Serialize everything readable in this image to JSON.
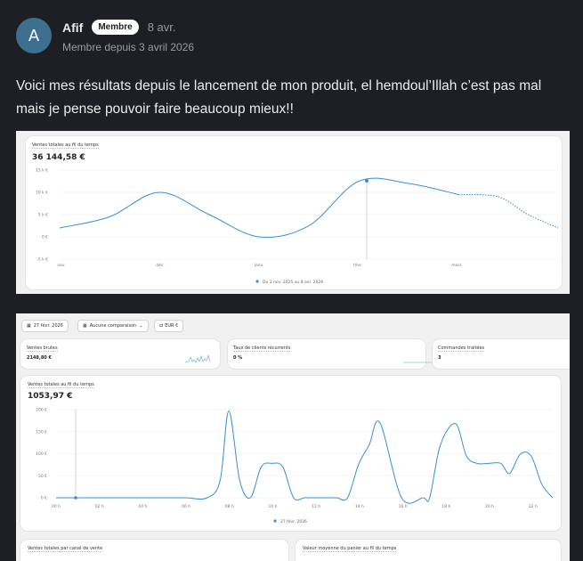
{
  "post": {
    "avatar_initial": "A",
    "author": "Afif",
    "badge": "Membre",
    "date": "8 avr.",
    "member_since": "Membre depuis 3 avril 2026",
    "text": "Voici mes résultats depuis le lancement de mon produit, el hemdoul’Illah c’est pas mal mais je pense pouvoir faire beaucoup mieux!!"
  },
  "screenshot1": {
    "title": "Ventes totales au fil du temps",
    "total": "36 144,58 €",
    "legend": "Du 1 nov. 2025 au 8 avr. 2026",
    "accent": "#3a8fd0"
  },
  "screenshot2": {
    "toolbar": {
      "date": "27 févr. 2026",
      "comparison": "Aucune comparaison",
      "currency": "EUR €"
    },
    "kpis": [
      {
        "label": "Ventes brutes",
        "value": "2148,80 €"
      },
      {
        "label": "Taux de clients récurrents",
        "value": "0 %"
      },
      {
        "label": "Commandes traitées",
        "value": "3"
      }
    ],
    "chart_title": "Ventes totales au fil du temps",
    "chart_total": "1053,97 €",
    "legend": "27 févr. 2026",
    "bottom_cards": [
      "Ventes totales par canal de vente",
      "Valeur moyenne du panier au fil du temps"
    ]
  },
  "chart_data": [
    {
      "type": "line",
      "title": "Ventes totales au fil du temps",
      "categories": [
        "nov.",
        "déc.",
        "janv.",
        "févr.",
        "mars"
      ],
      "y_ticks": [
        "15 k €",
        "10 k €",
        "5 k €",
        "0 €",
        "-5 k €"
      ],
      "ylim": [
        -5000,
        15000
      ],
      "x": [
        0,
        0.5,
        1,
        1.5,
        2,
        2.5,
        3,
        3.5,
        4,
        4.4,
        4.7,
        5
      ],
      "values": [
        2000,
        4500,
        10000,
        5000,
        0,
        2500,
        12500,
        12000,
        9500,
        9000,
        5000,
        2000
      ],
      "projected_from_x": 4,
      "grid": true,
      "legend_position": "bottom"
    },
    {
      "type": "line",
      "title": "Ventes totales au fil du temps",
      "categories": [
        "00 h",
        "02 h",
        "04 h",
        "06 h",
        "08 h",
        "10 h",
        "12 h",
        "14 h",
        "16 h",
        "18 h",
        "20 h",
        "22 h"
      ],
      "y_ticks": [
        "200 €",
        "150 €",
        "100 €",
        "50 €",
        "0 €"
      ],
      "ylim": [
        0,
        200
      ],
      "x": [
        0,
        1,
        2,
        3,
        4,
        5,
        6,
        7,
        7.6,
        8,
        8.5,
        9,
        9.5,
        10,
        10.5,
        11,
        11.5,
        12,
        12.5,
        13,
        13.5,
        14,
        14.5,
        15,
        16,
        17,
        17.3,
        17.8,
        18.5,
        19,
        19.5,
        20,
        20.6,
        21,
        21.5,
        22,
        22.5,
        23
      ],
      "values": [
        0,
        0,
        0,
        0,
        0,
        0,
        0,
        0,
        40,
        197,
        40,
        0,
        70,
        78,
        70,
        0,
        0,
        0,
        0,
        0,
        0,
        75,
        120,
        170,
        0,
        0,
        0,
        120,
        168,
        95,
        78,
        78,
        78,
        55,
        99,
        95,
        30,
        0
      ],
      "grid": true,
      "legend_position": "bottom"
    }
  ]
}
